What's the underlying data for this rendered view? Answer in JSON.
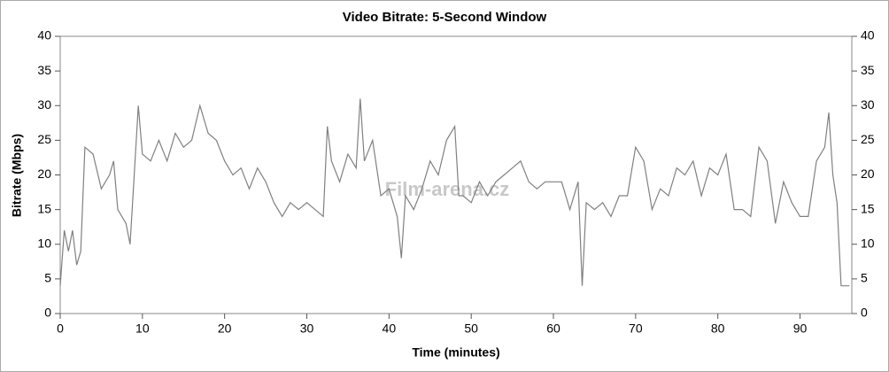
{
  "chart_data": {
    "type": "line",
    "title": "Video Bitrate: 5-Second Window",
    "xlabel": "Time (minutes)",
    "ylabel": "Bitrate (Mbps)",
    "watermark": "Film-arena.cz",
    "x": [
      0,
      0.5,
      1,
      1.5,
      2,
      2.5,
      3,
      4,
      5,
      6,
      6.5,
      7,
      8,
      8.5,
      9,
      9.5,
      10,
      11,
      12,
      13,
      14,
      15,
      16,
      17,
      18,
      19,
      20,
      21,
      22,
      23,
      24,
      25,
      26,
      27,
      28,
      29,
      30,
      31,
      32,
      32.5,
      33,
      34,
      35,
      36,
      36.5,
      37,
      38,
      39,
      40,
      41,
      41.5,
      42,
      43,
      44,
      45,
      46,
      47,
      48,
      48.5,
      49,
      50,
      51,
      52,
      53,
      54,
      55,
      56,
      57,
      58,
      59,
      60,
      61,
      62,
      63,
      63.5,
      64,
      65,
      66,
      67,
      68,
      69,
      70,
      71,
      72,
      73,
      74,
      75,
      76,
      77,
      78,
      79,
      80,
      81,
      82,
      83,
      84,
      85,
      86,
      87,
      88,
      89,
      90,
      91,
      92,
      93,
      93.5,
      94,
      94.5,
      95,
      96
    ],
    "series": [
      {
        "name": "Bitrate",
        "color": "#808080",
        "axis": "y",
        "values": [
          4,
          12,
          9,
          12,
          7,
          9,
          24,
          23,
          18,
          20,
          22,
          15,
          13,
          10,
          20,
          30,
          23,
          22,
          25,
          22,
          26,
          24,
          25,
          30,
          26,
          25,
          22,
          20,
          21,
          18,
          21,
          19,
          16,
          14,
          16,
          15,
          16,
          15,
          14,
          27,
          22,
          19,
          23,
          21,
          31,
          22,
          25,
          17,
          18,
          14,
          8,
          17,
          15,
          18,
          22,
          20,
          25,
          27,
          17,
          17,
          16,
          19,
          17,
          19,
          20,
          21,
          22,
          19,
          18,
          19,
          19,
          19,
          15,
          19,
          4,
          16,
          15,
          16,
          14,
          17,
          17,
          24,
          22,
          15,
          18,
          17,
          21,
          20,
          22,
          17,
          21,
          20,
          23,
          15,
          15,
          14,
          24,
          22,
          13,
          19,
          16,
          14,
          14,
          22,
          24,
          29,
          20,
          16,
          4,
          4
        ]
      }
    ],
    "xlim": [
      0,
      96.3
    ],
    "xticks": [
      0,
      10,
      20,
      30,
      40,
      50,
      60,
      70,
      80,
      90
    ],
    "ylim": [
      0,
      40
    ],
    "yticks": [
      0,
      5,
      10,
      15,
      20,
      25,
      30,
      35,
      40
    ],
    "y2lim": [
      0,
      40
    ],
    "y2ticks": [
      0,
      5,
      10,
      15,
      20,
      25,
      30,
      35,
      40
    ]
  }
}
